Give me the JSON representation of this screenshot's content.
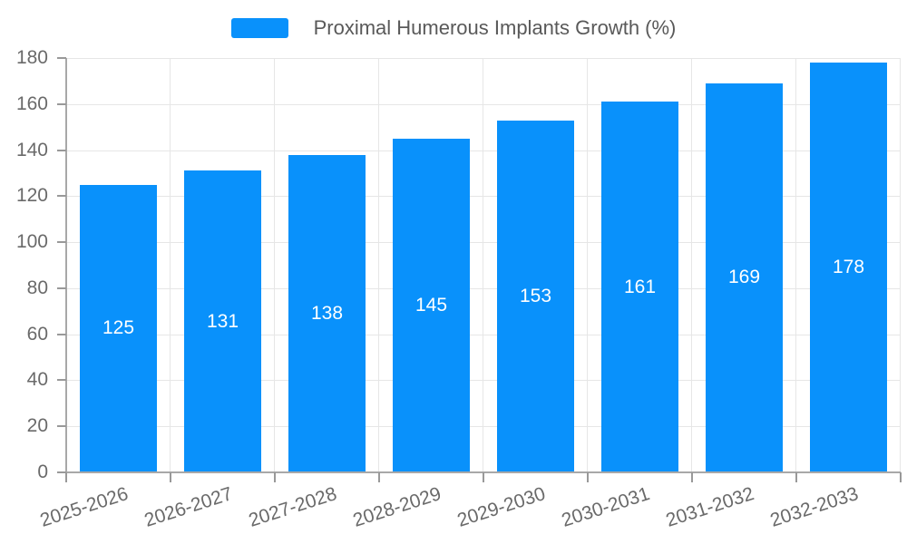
{
  "legend": {
    "label": "Proximal Humerous Implants Growth (%)"
  },
  "chart_data": {
    "type": "bar",
    "title": "",
    "series_name": "Proximal Humerous Implants Growth (%)",
    "categories": [
      "2025-2026",
      "2026-2027",
      "2027-2028",
      "2028-2029",
      "2029-2030",
      "2030-2031",
      "2031-2032",
      "2032-2033"
    ],
    "values": [
      125,
      131,
      138,
      145,
      153,
      161,
      169,
      178
    ],
    "xlabel": "",
    "ylabel": "",
    "ylim": [
      0,
      180
    ],
    "yticks": [
      0,
      20,
      40,
      60,
      80,
      100,
      120,
      140,
      160,
      180
    ],
    "grid": true,
    "legend_position": "top",
    "x_label_rotation_deg": -18,
    "bar_color": "#0991fb",
    "value_label_color": "#ffffff",
    "gridline_color": "#e6e6e6",
    "axis_color": "#a8a8a8",
    "tick_color": "#999999",
    "tick_label_color": "#6a6a6a",
    "legend_text_color": "#595959"
  }
}
